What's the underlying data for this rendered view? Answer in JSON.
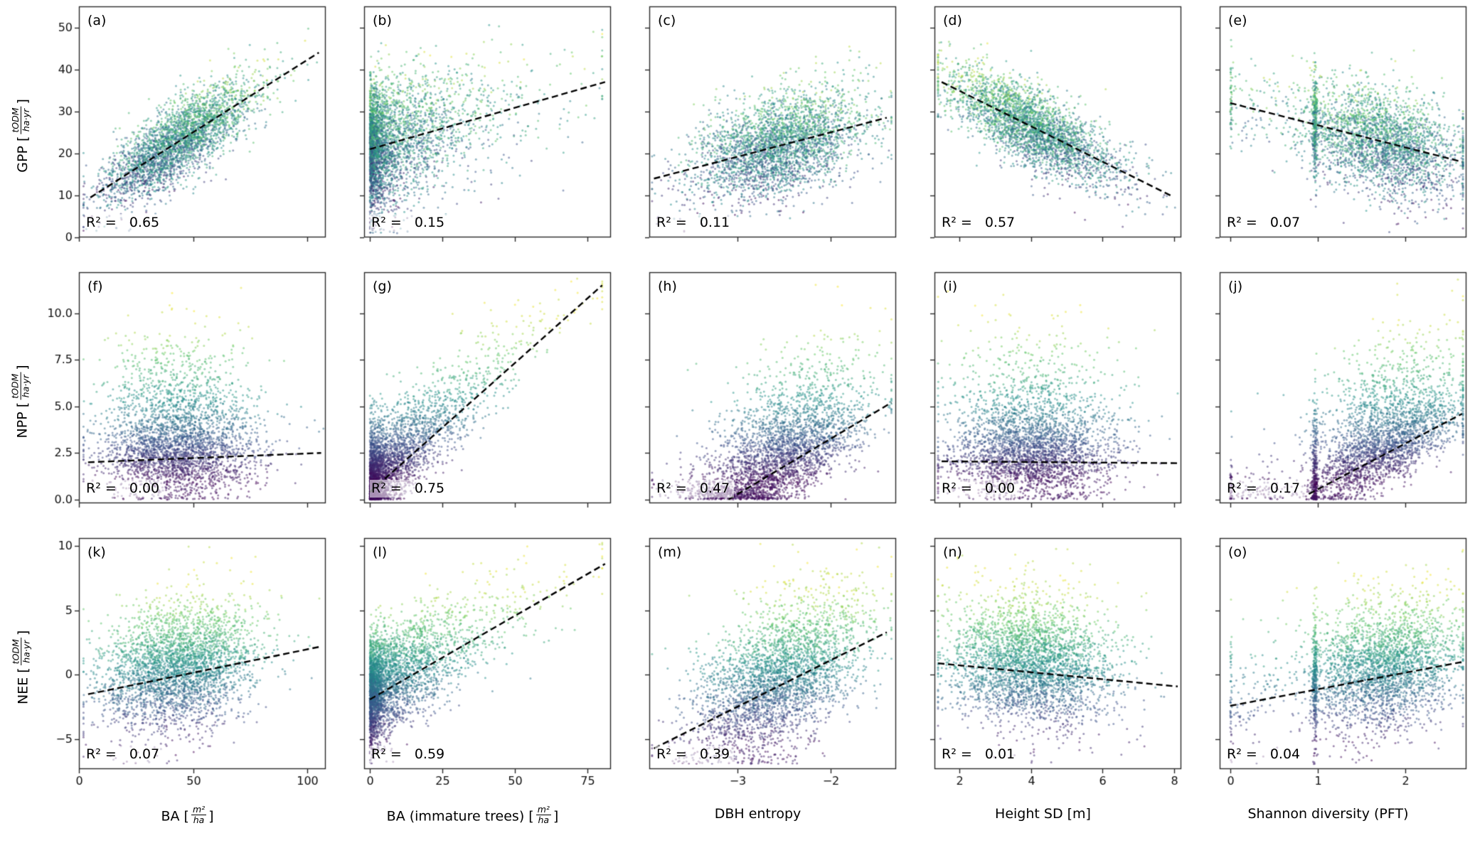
{
  "chart_data": {
    "type": "scatter",
    "colormap": "viridis",
    "grid": "off",
    "layout": "3 rows (GPP, NPP, NEE) x 5 columns of structure predictors; shared axes; dashed black OLS trend line per panel; points colored by viridis colormap",
    "r2_prefix": "R² = ",
    "rows": [
      {
        "var": "GPP",
        "unit_num": "tODM",
        "unit_den": "ha·yr",
        "ylim": [
          0,
          55
        ],
        "ytick_vals": [
          0,
          10,
          20,
          30,
          40,
          50
        ],
        "ytick_labels": [
          "0",
          "10",
          "20",
          "30",
          "40",
          "50"
        ],
        "fold_low": 1.0,
        "color_mix": 0.5
      },
      {
        "var": "NPP",
        "unit_num": "tODM",
        "unit_den": "ha·yr",
        "ylim": [
          -0.2,
          12.2
        ],
        "ytick_vals": [
          0,
          2.5,
          5,
          7.5,
          10
        ],
        "ytick_labels": [
          "0.0",
          "2.5",
          "5.0",
          "7.5",
          "10.0"
        ],
        "fold_low": 0.0,
        "color_mix": 0.9
      },
      {
        "var": "NEE",
        "unit_num": "tODM",
        "unit_den": "ha·yr",
        "ylim": [
          -7.3,
          10.6
        ],
        "ytick_vals": [
          -5,
          0,
          5,
          10
        ],
        "ytick_labels": [
          "−5",
          "0",
          "5",
          "10"
        ],
        "fold_low": -6.9,
        "color_mix": 0.85
      }
    ],
    "cols": [
      {
        "label_pre": "BA [",
        "frac_num": "m²",
        "frac_den": "ha",
        "label_post": "]",
        "xlim": [
          0,
          108
        ],
        "xtick_vals": [
          0,
          50,
          100
        ],
        "xtick_labels": [
          "0",
          "50",
          "100"
        ],
        "xdist": "ba"
      },
      {
        "label_pre": "BA (immature trees) [",
        "frac_num": "m²",
        "frac_den": "ha",
        "label_post": "]",
        "xlim": [
          -2,
          83
        ],
        "xtick_vals": [
          0,
          25,
          50,
          75
        ],
        "xtick_labels": [
          "0",
          "25",
          "50",
          "75"
        ],
        "xdist": "ba_imm"
      },
      {
        "label_pre": "DBH entropy",
        "frac_num": "",
        "frac_den": "",
        "label_post": "",
        "xlim": [
          -3.95,
          -1.3
        ],
        "xtick_vals": [
          -3,
          -2
        ],
        "xtick_labels": [
          "−3",
          "−2"
        ],
        "xdist": "dbh"
      },
      {
        "label_pre": "Height SD [m]",
        "frac_num": "",
        "frac_den": "",
        "label_post": "",
        "xlim": [
          1.3,
          8.2
        ],
        "xtick_vals": [
          2,
          4,
          6,
          8
        ],
        "xtick_labels": [
          "2",
          "4",
          "6",
          "8"
        ],
        "xdist": "hsd"
      },
      {
        "label_pre": "Shannon diversity (PFT)",
        "frac_num": "",
        "frac_den": "",
        "label_post": "",
        "xlim": [
          -0.12,
          2.7
        ],
        "xtick_vals": [
          0,
          1,
          2
        ],
        "xtick_labels": [
          "0",
          "1",
          "2"
        ],
        "xdist": "shannon"
      }
    ],
    "panels": [
      {
        "label": "(a)",
        "r2": "0.65",
        "row": 0,
        "col": 0,
        "trend": [
          5,
          9.5,
          105,
          44
        ],
        "noise": [
          4.5,
          0
        ],
        "n": 3200
      },
      {
        "label": "(b)",
        "r2": "0.15",
        "row": 0,
        "col": 1,
        "trend": [
          0,
          21,
          81,
          37
        ],
        "noise": [
          7.5,
          0
        ],
        "n": 3400
      },
      {
        "label": "(c)",
        "r2": "0.11",
        "row": 0,
        "col": 2,
        "trend": [
          -3.9,
          14,
          -1.4,
          28.5
        ],
        "noise": [
          6,
          0
        ],
        "n": 3200
      },
      {
        "label": "(d)",
        "r2": "0.57",
        "row": 0,
        "col": 3,
        "trend": [
          1.5,
          37,
          7.9,
          10
        ],
        "noise": [
          4.5,
          0
        ],
        "n": 3200
      },
      {
        "label": "(e)",
        "r2": "0.07",
        "row": 0,
        "col": 4,
        "trend": [
          0,
          32,
          2.65,
          18
        ],
        "noise": [
          6,
          0
        ],
        "n": 3200
      },
      {
        "label": "(f)",
        "r2": "0.00",
        "row": 1,
        "col": 0,
        "trend": [
          4,
          2.0,
          106,
          2.5
        ],
        "noise": [
          1.1,
          2.6
        ],
        "n": 3200
      },
      {
        "label": "(g)",
        "r2": "0.75",
        "row": 1,
        "col": 1,
        "trend": [
          0,
          0.4,
          80,
          11.5
        ],
        "noise": [
          1.0,
          1.3
        ],
        "n": 3400
      },
      {
        "label": "(h)",
        "r2": "0.47",
        "row": 1,
        "col": 2,
        "trend": [
          -3.1,
          0.0,
          -1.35,
          5.2
        ],
        "noise": [
          1.1,
          2.3
        ],
        "n": 3200
      },
      {
        "label": "(i)",
        "r2": "0.00",
        "row": 1,
        "col": 3,
        "trend": [
          1.5,
          2.05,
          8.1,
          1.95
        ],
        "noise": [
          1.1,
          2.6
        ],
        "n": 3200
      },
      {
        "label": "(j)",
        "r2": "0.17",
        "row": 1,
        "col": 4,
        "trend": [
          0.9,
          0.3,
          2.65,
          4.6
        ],
        "noise": [
          0.9,
          2.4
        ],
        "n": 3200
      },
      {
        "label": "(k)",
        "r2": "0.07",
        "row": 2,
        "col": 0,
        "trend": [
          4,
          -1.5,
          106,
          2.2
        ],
        "noise": [
          2.3,
          1.6
        ],
        "n": 3200
      },
      {
        "label": "(l)",
        "r2": "0.59",
        "row": 2,
        "col": 1,
        "trend": [
          0,
          -1.9,
          81,
          8.6
        ],
        "noise": [
          1.9,
          1.3
        ],
        "n": 3400
      },
      {
        "label": "(m)",
        "r2": "0.39",
        "row": 2,
        "col": 2,
        "trend": [
          -3.9,
          -5.7,
          -1.4,
          3.3
        ],
        "noise": [
          2.6,
          1.5
        ],
        "n": 3200
      },
      {
        "label": "(n)",
        "r2": "0.01",
        "row": 2,
        "col": 3,
        "trend": [
          1.4,
          0.9,
          8.1,
          -0.9
        ],
        "noise": [
          2.3,
          1.7
        ],
        "n": 3200
      },
      {
        "label": "(o)",
        "r2": "0.04",
        "row": 2,
        "col": 4,
        "trend": [
          0,
          -2.4,
          2.65,
          1.0
        ],
        "noise": [
          2.3,
          1.7
        ],
        "n": 3200
      }
    ]
  }
}
